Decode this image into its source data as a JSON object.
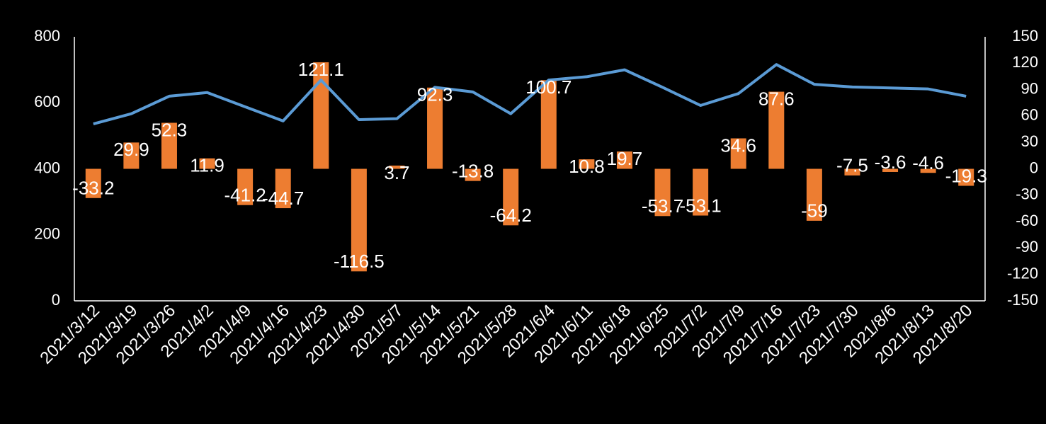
{
  "chart_data": {
    "type": "bar+line",
    "title": "",
    "categories": [
      "2021/3/12",
      "2021/3/19",
      "2021/3/26",
      "2021/4/2",
      "2021/4/9",
      "2021/4/16",
      "2021/4/23",
      "2021/4/30",
      "2021/5/7",
      "2021/5/14",
      "2021/5/21",
      "2021/5/28",
      "2021/6/4",
      "2021/6/11",
      "2021/6/18",
      "2021/6/25",
      "2021/7/2",
      "2021/7/9",
      "2021/7/16",
      "2021/7/23",
      "2021/7/30",
      "2021/8/6",
      "2021/8/13",
      "2021/8/20"
    ],
    "series": [
      {
        "name": "line",
        "axis": "left",
        "type": "line",
        "color": "#5b9bd5",
        "values": [
          536,
          567,
          620,
          631,
          588,
          545,
          669,
          549,
          552,
          647,
          633,
          567,
          669,
          679,
          700,
          647,
          592,
          628,
          716,
          656,
          648,
          645,
          642,
          620
        ]
      },
      {
        "name": "bar",
        "axis": "right",
        "type": "bar",
        "color": "#ed7d31",
        "values": [
          -33.2,
          29.9,
          52.3,
          11.9,
          -41.2,
          -44.7,
          121.1,
          -116.5,
          3.7,
          92.3,
          -13.8,
          -64.2,
          100.7,
          10.8,
          19.7,
          -53.7,
          -53.1,
          34.6,
          87.6,
          -59,
          -7.5,
          -3.6,
          -4.6,
          -19.3
        ],
        "labels": [
          "-33.2",
          "29.9",
          "52.3",
          "11.9",
          "-41.2",
          "-44.7",
          "121.1",
          "-116.5",
          "3.7",
          "92.3",
          "-13.8",
          "-64.2",
          "100.7",
          "10.8",
          "19.7",
          "-53.7",
          "-53.1",
          "34.6",
          "87.6",
          "-59",
          "-7.5",
          "-3.6",
          "-4.6",
          "-19.3"
        ]
      }
    ],
    "y_left": {
      "min": 0,
      "max": 800,
      "ticks": [
        "0",
        "200",
        "400",
        "600",
        "800"
      ]
    },
    "y_right": {
      "min": -150,
      "max": 150,
      "ticks": [
        "-150",
        "-120",
        "-90",
        "-60",
        "-30",
        "0",
        "30",
        "60",
        "90",
        "120",
        "150"
      ]
    },
    "grid": false,
    "legend": "none"
  }
}
